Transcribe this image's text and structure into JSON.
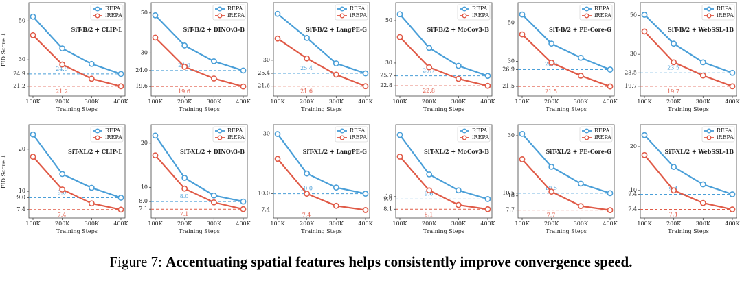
{
  "chart_data": [
    {
      "type": "line",
      "title": "SiT-B/2 + CLIP-L",
      "ylabel": "FID Score ↓",
      "xlabel": "Training Steps",
      "categories": [
        "100K",
        "200K",
        "300K",
        "400K"
      ],
      "yscale": "log",
      "ylim": [
        19.7,
        60
      ],
      "yticks": [
        21.2,
        24.9,
        30,
        50
      ],
      "series": [
        {
          "name": "REPA",
          "color": "#4a9fd8",
          "values": [
            52.8,
            34.8,
            28.4,
            24.9
          ]
        },
        {
          "name": "iREPA",
          "color": "#e05a47",
          "values": [
            41.4,
            28.2,
            23.4,
            21.2
          ]
        }
      ]
    },
    {
      "type": "line",
      "title": "SiT-B/2 + DINOv3-B",
      "xlabel": "Training Steps",
      "categories": [
        "100K",
        "200K",
        "300K",
        "400K"
      ],
      "yscale": "log",
      "ylim": [
        18.3,
        54
      ],
      "yticks": [
        19.6,
        {
          "value": 24,
          "label": "24.0"
        },
        30,
        50
      ],
      "series": [
        {
          "name": "REPA",
          "color": "#4a9fd8",
          "values": [
            48.5,
            33,
            27,
            24
          ],
          "value_labels": [
            null,
            null,
            null,
            "24.0"
          ]
        },
        {
          "name": "iREPA",
          "color": "#e05a47",
          "values": [
            36.5,
            25.2,
            21.7,
            19.6
          ]
        }
      ]
    },
    {
      "type": "line",
      "title": "SiT-B/2 + LangPE-G",
      "xlabel": "Training Steps",
      "categories": [
        "100K",
        "200K",
        "300K",
        "400K"
      ],
      "yscale": "log",
      "ylim": [
        20.1,
        59
      ],
      "yticks": [
        21.6,
        25.4,
        30
      ],
      "series": [
        {
          "name": "REPA",
          "color": "#4a9fd8",
          "values": [
            54,
            39.8,
            28.8,
            25.4
          ]
        },
        {
          "name": "iREPA",
          "color": "#e05a47",
          "values": [
            39.5,
            30.7,
            25,
            21.6
          ]
        }
      ]
    },
    {
      "type": "line",
      "title": "SiT-B/2 + MoCov3-B",
      "xlabel": "Training Steps",
      "categories": [
        "100K",
        "200K",
        "300K",
        "400K"
      ],
      "yscale": "log",
      "ylim": [
        21.2,
        59
      ],
      "yticks": [
        22.8,
        25.7,
        30,
        50
      ],
      "series": [
        {
          "name": "REPA",
          "color": "#4a9fd8",
          "values": [
            54,
            36,
            29,
            25.7
          ]
        },
        {
          "name": "iREPA",
          "color": "#e05a47",
          "values": [
            41,
            28.5,
            24.8,
            22.8
          ]
        }
      ]
    },
    {
      "type": "line",
      "title": "SiT-B/2 + PE-Core-G",
      "xlabel": "Training Steps",
      "categories": [
        "100K",
        "200K",
        "300K",
        "400K"
      ],
      "yscale": "log",
      "ylim": [
        20,
        62
      ],
      "yticks": [
        21.5,
        26.9,
        30,
        50
      ],
      "series": [
        {
          "name": "REPA",
          "color": "#4a9fd8",
          "values": [
            56,
            38,
            31.5,
            26.9
          ]
        },
        {
          "name": "iREPA",
          "color": "#e05a47",
          "values": [
            43,
            29.5,
            24.8,
            21.5
          ]
        }
      ]
    },
    {
      "type": "line",
      "title": "SiT-B/2 + WebSSL-1B",
      "xlabel": "Training Steps",
      "categories": [
        "100K",
        "200K",
        "300K",
        "400K"
      ],
      "yscale": "log",
      "ylim": [
        18.3,
        56
      ],
      "yticks": [
        19.7,
        23.5,
        30,
        50
      ],
      "series": [
        {
          "name": "REPA",
          "color": "#4a9fd8",
          "values": [
            50.5,
            34.5,
            27,
            23.5
          ]
        },
        {
          "name": "iREPA",
          "color": "#e05a47",
          "values": [
            40.5,
            27,
            22.7,
            19.7
          ]
        }
      ]
    },
    {
      "type": "line",
      "title": "SiT-XL/2 + CLIP-L",
      "ylabel": "FID Score ↓",
      "xlabel": "Training Steps",
      "categories": [
        "100K",
        "200K",
        "300K",
        "400K"
      ],
      "yscale": "log",
      "ylim": [
        6.9,
        28
      ],
      "yticks": [
        7.4,
        {
          "value": 9,
          "label": "9.0"
        },
        10,
        20
      ],
      "series": [
        {
          "name": "REPA",
          "color": "#4a9fd8",
          "values": [
            25.5,
            13.3,
            10.6,
            9
          ],
          "value_labels": [
            null,
            null,
            null,
            "9.0"
          ]
        },
        {
          "name": "iREPA",
          "color": "#e05a47",
          "values": [
            17.7,
            10.3,
            8.2,
            7.4
          ]
        }
      ]
    },
    {
      "type": "line",
      "title": "SiT-XL/2 + DINOv3-B",
      "xlabel": "Training Steps",
      "categories": [
        "100K",
        "200K",
        "300K",
        "400K"
      ],
      "yscale": "log",
      "ylim": [
        6.6,
        25
      ],
      "yticks": [
        7.1,
        {
          "value": 8,
          "label": "8.0"
        },
        10,
        20
      ],
      "series": [
        {
          "name": "REPA",
          "color": "#4a9fd8",
          "values": [
            22.5,
            11.6,
            8.8,
            8
          ],
          "value_labels": [
            null,
            null,
            null,
            "8.0"
          ]
        },
        {
          "name": "iREPA",
          "color": "#e05a47",
          "values": [
            16.5,
            9.8,
            7.9,
            7.1
          ]
        }
      ]
    },
    {
      "type": "line",
      "title": "SiT-XL/2 + LangPE-G",
      "xlabel": "Training Steps",
      "categories": [
        "100K",
        "200K",
        "300K",
        "400K"
      ],
      "yscale": "log",
      "ylim": [
        6.9,
        33
      ],
      "yticks": [
        7.4,
        {
          "value": 10,
          "label": "10.0"
        },
        30
      ],
      "series": [
        {
          "name": "REPA",
          "color": "#4a9fd8",
          "values": [
            30,
            14.5,
            11.2,
            10
          ],
          "value_labels": [
            null,
            null,
            null,
            "10.0"
          ]
        },
        {
          "name": "iREPA",
          "color": "#e05a47",
          "values": [
            19,
            10,
            8,
            7.4
          ]
        }
      ]
    },
    {
      "type": "line",
      "title": "SiT-XL/2 + MoCov3-B",
      "xlabel": "Training Steps",
      "categories": [
        "100K",
        "200K",
        "300K",
        "400K"
      ],
      "yscale": "log",
      "ylim": [
        7.5,
        31
      ],
      "yticks": [
        8.1,
        9.6,
        10
      ],
      "series": [
        {
          "name": "REPA",
          "color": "#4a9fd8",
          "values": [
            28,
            14.5,
            11.1,
            9.6
          ]
        },
        {
          "name": "iREPA",
          "color": "#e05a47",
          "values": [
            19.5,
            11.1,
            8.7,
            8.1
          ]
        }
      ]
    },
    {
      "type": "line",
      "title": "SiT-XL/2 + PE-Core-G",
      "xlabel": "Training Steps",
      "categories": [
        "100K",
        "200K",
        "300K",
        "400K"
      ],
      "yscale": "log",
      "ylim": [
        7.2,
        34
      ],
      "yticks": [
        7.7,
        10,
        10.5,
        30
      ],
      "series": [
        {
          "name": "REPA",
          "color": "#4a9fd8",
          "values": [
            31,
            17,
            12.5,
            10.5
          ]
        },
        {
          "name": "iREPA",
          "color": "#e05a47",
          "values": [
            19.5,
            10.8,
            8.3,
            7.7
          ]
        }
      ]
    },
    {
      "type": "line",
      "title": "SiT-XL/2 + WebSSL-1B",
      "xlabel": "Training Steps",
      "categories": [
        "100K",
        "200K",
        "300K",
        "400K"
      ],
      "yscale": "log",
      "ylim": [
        6.9,
        26.5
      ],
      "yticks": [
        7.4,
        9.4,
        10,
        20
      ],
      "series": [
        {
          "name": "REPA",
          "color": "#4a9fd8",
          "values": [
            24,
            14.5,
            11,
            9.4
          ]
        },
        {
          "name": "iREPA",
          "color": "#e05a47",
          "values": [
            17.5,
            10,
            8.2,
            7.4
          ]
        }
      ]
    }
  ],
  "caption": {
    "label": "Figure 7:",
    "text": "Accentuating spatial features helps consistently improve convergence speed."
  }
}
